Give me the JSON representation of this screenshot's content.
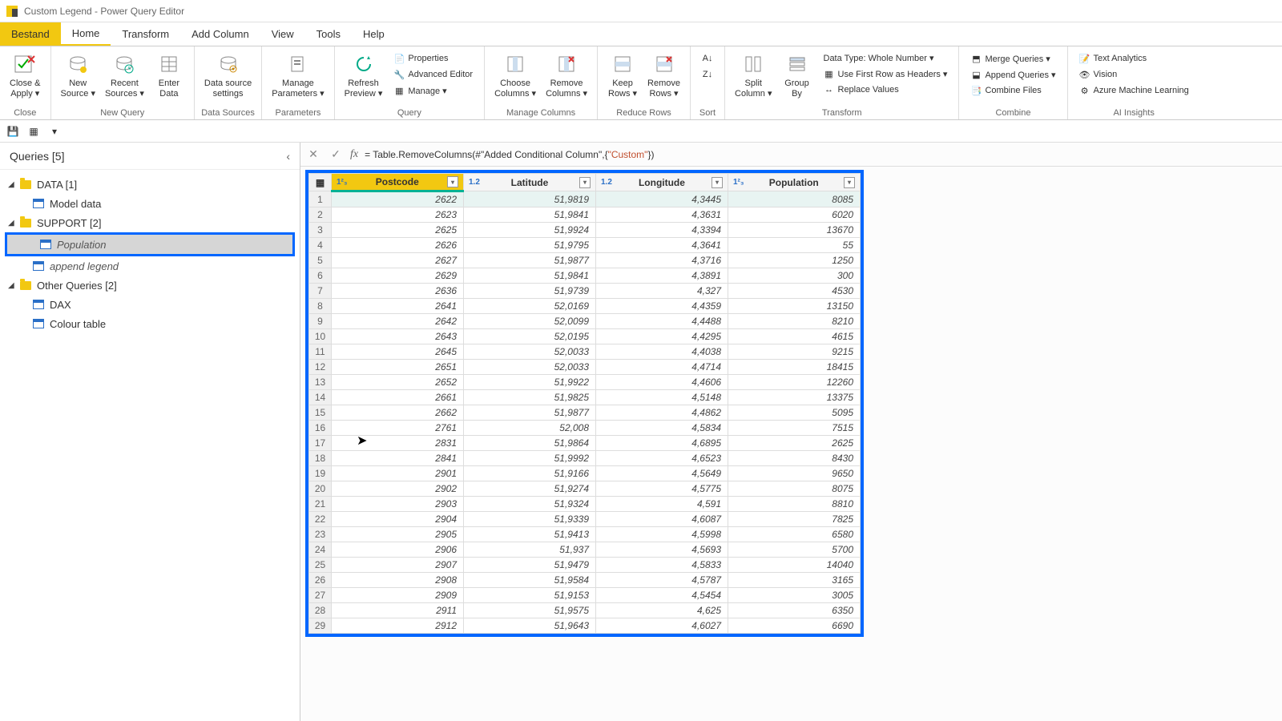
{
  "app": {
    "title": "Custom Legend - Power Query Editor"
  },
  "menu": {
    "file": "Bestand",
    "tabs": [
      "Home",
      "Transform",
      "Add Column",
      "View",
      "Tools",
      "Help"
    ],
    "active": 0
  },
  "ribbon": {
    "close": {
      "label": "Close &\nApply ▾",
      "group": "Close"
    },
    "newquery": {
      "new_source": "New\nSource ▾",
      "recent": "Recent\nSources ▾",
      "enter": "Enter\nData",
      "group": "New Query"
    },
    "datasources": {
      "settings": "Data source\nsettings",
      "group": "Data Sources"
    },
    "parameters": {
      "manage": "Manage\nParameters ▾",
      "group": "Parameters"
    },
    "query": {
      "refresh": "Refresh\nPreview ▾",
      "properties": "Properties",
      "adv_editor": "Advanced Editor",
      "manage": "Manage ▾",
      "group": "Query"
    },
    "manage_cols": {
      "choose": "Choose\nColumns ▾",
      "remove": "Remove\nColumns ▾",
      "group": "Manage Columns"
    },
    "reduce_rows": {
      "keep": "Keep\nRows ▾",
      "remove": "Remove\nRows ▾",
      "group": "Reduce Rows"
    },
    "sort": {
      "group": "Sort"
    },
    "transform": {
      "split": "Split\nColumn ▾",
      "group_by": "Group\nBy",
      "datatype": "Data Type: Whole Number ▾",
      "headers": "Use First Row as Headers ▾",
      "replace": "Replace Values",
      "group": "Transform"
    },
    "combine": {
      "merge": "Merge Queries ▾",
      "append": "Append Queries ▾",
      "combine_files": "Combine Files",
      "group": "Combine"
    },
    "ai": {
      "text": "Text Analytics",
      "vision": "Vision",
      "ml": "Azure Machine Learning",
      "group": "AI Insights"
    }
  },
  "queries": {
    "header": "Queries [5]",
    "groups": [
      {
        "name": "DATA [1]",
        "items": [
          {
            "label": "Model data"
          }
        ]
      },
      {
        "name": "SUPPORT [2]",
        "items": [
          {
            "label": "Population",
            "selected": true,
            "italic": true
          },
          {
            "label": "append legend",
            "italic": true
          }
        ]
      },
      {
        "name": "Other Queries [2]",
        "items": [
          {
            "label": "DAX"
          },
          {
            "label": "Colour table"
          }
        ]
      }
    ]
  },
  "formula": {
    "prefix": "= Table.RemoveColumns(#\"Added Conditional Column\",{",
    "string": "\"Custom\"",
    "suffix": "})"
  },
  "table": {
    "columns": [
      {
        "name": "Postcode",
        "type": "1²₃",
        "selected": true
      },
      {
        "name": "Latitude",
        "type": "1.2"
      },
      {
        "name": "Longitude",
        "type": "1.2"
      },
      {
        "name": "Population",
        "type": "1²₃"
      }
    ],
    "rows": [
      [
        "2622",
        "51,9819",
        "4,3445",
        "8085"
      ],
      [
        "2623",
        "51,9841",
        "4,3631",
        "6020"
      ],
      [
        "2625",
        "51,9924",
        "4,3394",
        "13670"
      ],
      [
        "2626",
        "51,9795",
        "4,3641",
        "55"
      ],
      [
        "2627",
        "51,9877",
        "4,3716",
        "1250"
      ],
      [
        "2629",
        "51,9841",
        "4,3891",
        "300"
      ],
      [
        "2636",
        "51,9739",
        "4,327",
        "4530"
      ],
      [
        "2641",
        "52,0169",
        "4,4359",
        "13150"
      ],
      [
        "2642",
        "52,0099",
        "4,4488",
        "8210"
      ],
      [
        "2643",
        "52,0195",
        "4,4295",
        "4615"
      ],
      [
        "2645",
        "52,0033",
        "4,4038",
        "9215"
      ],
      [
        "2651",
        "52,0033",
        "4,4714",
        "18415"
      ],
      [
        "2652",
        "51,9922",
        "4,4606",
        "12260"
      ],
      [
        "2661",
        "51,9825",
        "4,5148",
        "13375"
      ],
      [
        "2662",
        "51,9877",
        "4,4862",
        "5095"
      ],
      [
        "2761",
        "52,008",
        "4,5834",
        "7515"
      ],
      [
        "2831",
        "51,9864",
        "4,6895",
        "2625"
      ],
      [
        "2841",
        "51,9992",
        "4,6523",
        "8430"
      ],
      [
        "2901",
        "51,9166",
        "4,5649",
        "9650"
      ],
      [
        "2902",
        "51,9274",
        "4,5775",
        "8075"
      ],
      [
        "2903",
        "51,9324",
        "4,591",
        "8810"
      ],
      [
        "2904",
        "51,9339",
        "4,6087",
        "7825"
      ],
      [
        "2905",
        "51,9413",
        "4,5998",
        "6580"
      ],
      [
        "2906",
        "51,937",
        "4,5693",
        "5700"
      ],
      [
        "2907",
        "51,9479",
        "4,5833",
        "14040"
      ],
      [
        "2908",
        "51,9584",
        "4,5787",
        "3165"
      ],
      [
        "2909",
        "51,9153",
        "4,5454",
        "3005"
      ],
      [
        "2911",
        "51,9575",
        "4,625",
        "6350"
      ],
      [
        "2912",
        "51,9643",
        "4,6027",
        "6690"
      ]
    ]
  }
}
